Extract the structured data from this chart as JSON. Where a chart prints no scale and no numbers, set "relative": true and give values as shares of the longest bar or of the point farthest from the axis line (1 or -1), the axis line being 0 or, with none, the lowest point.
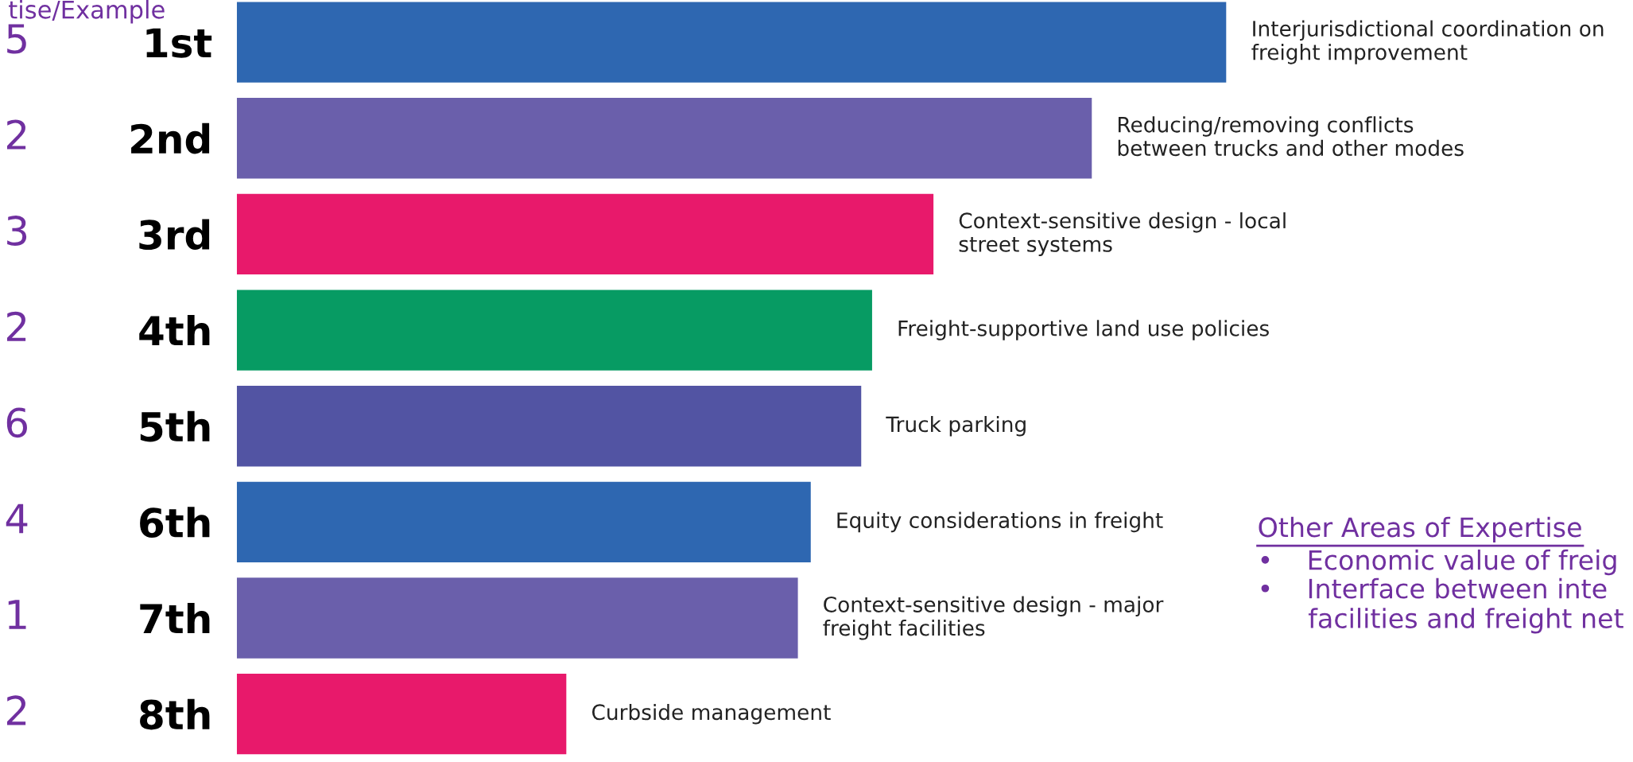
{
  "chart_data": {
    "type": "bar",
    "orientation": "horizontal",
    "relative": true,
    "categories": [
      "1st",
      "2nd",
      "3rd",
      "4th",
      "5th",
      "6th",
      "7th",
      "8th"
    ],
    "values": [
      1,
      0.864,
      0.704,
      0.642,
      0.631,
      0.58,
      0.567,
      0.333
    ],
    "colors": [
      "#2e67b1",
      "#6a5fab",
      "#e8196b",
      "#079b63",
      "#5254a3",
      "#2e67b1",
      "#6a5fab",
      "#e8196b"
    ],
    "annotations": [
      {
        "text": "Interjurisdictional coordination on\nfreight improvement",
        "x": 1,
        "y": "1st"
      },
      {
        "text": "Reducing/removing conflicts\nbetween trucks and other modes",
        "x": 0.864,
        "y": "2nd"
      },
      {
        "text": "Context-sensitive design - local\nstreet systems",
        "x": 0.704,
        "y": "3rd"
      },
      {
        "text": "Freight-supportive land use policies",
        "x": 0.642,
        "y": "4th"
      },
      {
        "text": "Truck parking",
        "x": 0.631,
        "y": "5th"
      },
      {
        "text": "Equity considerations in freight",
        "x": 0.58,
        "y": "6th"
      },
      {
        "text": "Context-sensitive design - major\nfreight facilities",
        "x": 0.567,
        "y": "7th"
      },
      {
        "text": "Curbside management",
        "x": 0.333,
        "y": "8th"
      },
      "5",
      "2",
      "3",
      "2",
      "6",
      "4",
      "1",
      "2",
      "tise/Example",
      "Other Areas of Expertise",
      "•    Economic value of freig",
      "•    Interface between inte\n      facilities and freight net"
    ]
  }
}
